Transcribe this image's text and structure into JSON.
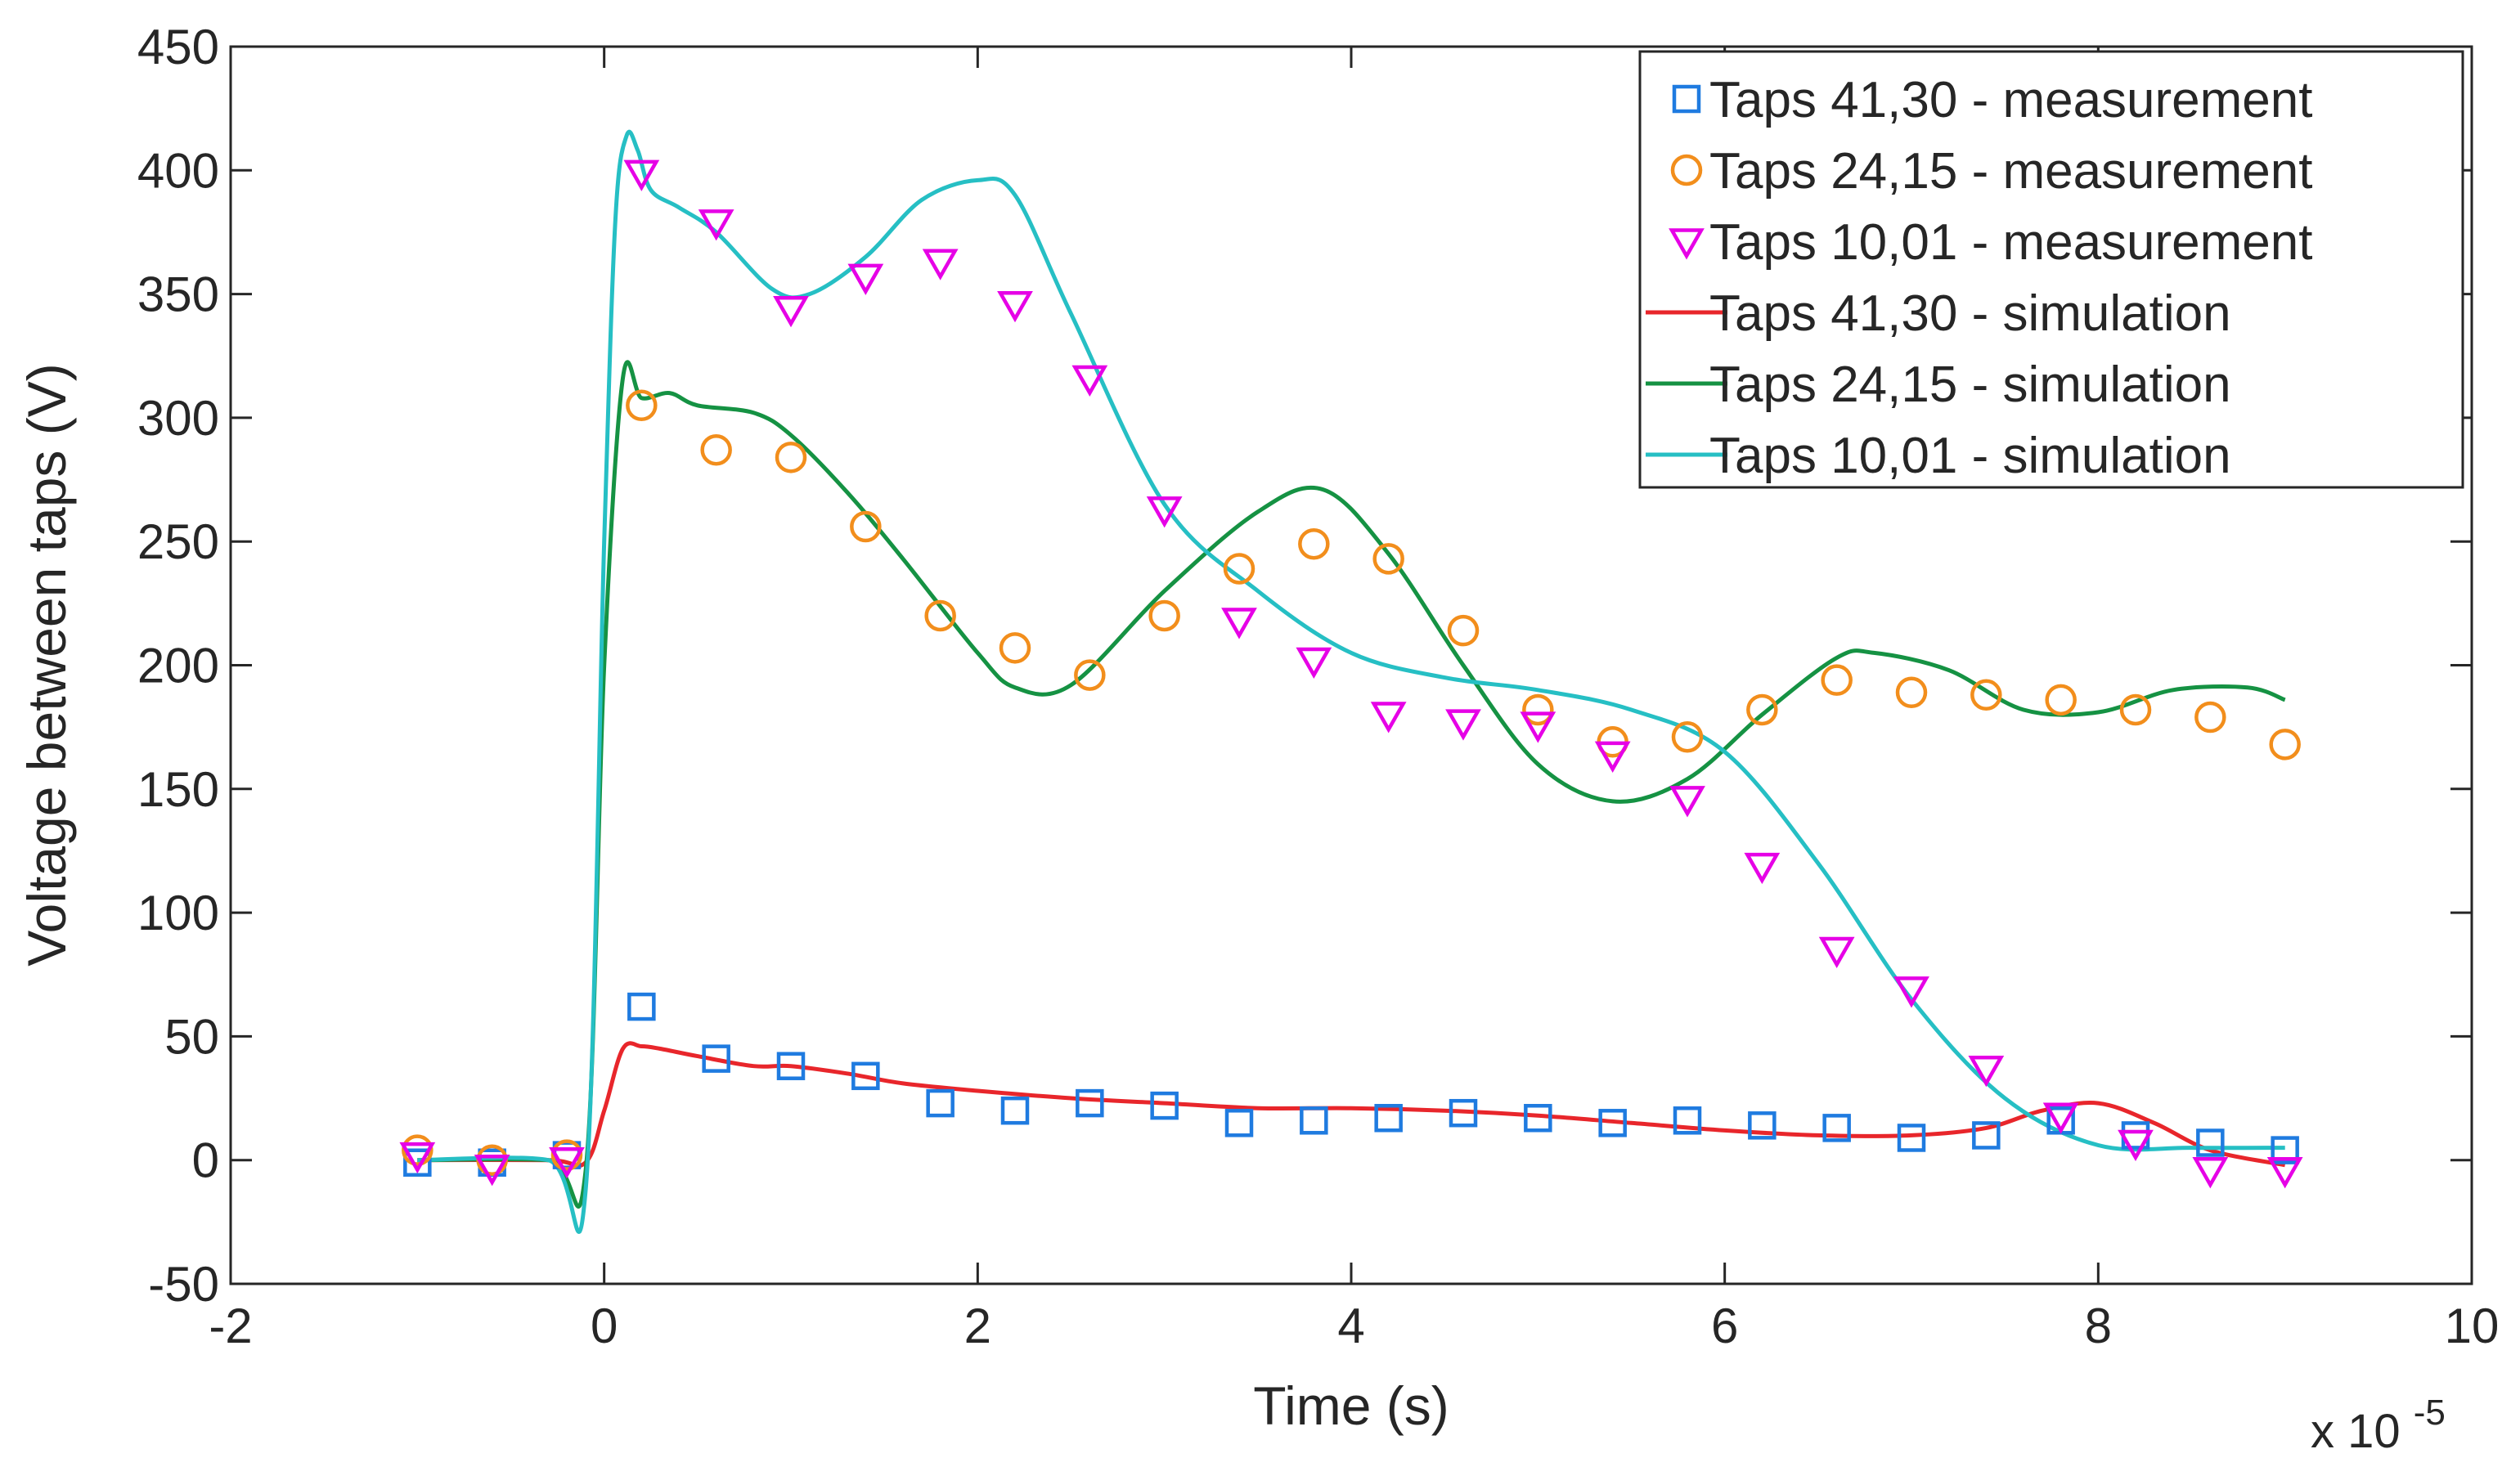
{
  "chart_data": {
    "type": "line",
    "xlabel": "Time (s)",
    "ylabel": "Voltage between taps (V)",
    "x_exponent_label": "x 10",
    "x_exponent_power": "-5",
    "xlim": [
      -2,
      10
    ],
    "ylim": [
      -50,
      450
    ],
    "x_ticks": [
      -2,
      0,
      2,
      4,
      6,
      8,
      10
    ],
    "y_ticks": [
      -50,
      0,
      50,
      100,
      150,
      200,
      250,
      300,
      350,
      400,
      450
    ],
    "legend_position": "top-right",
    "measurements": [
      {
        "name": "Taps 41,30 - measurement",
        "marker": "square",
        "color": "#1f7be0",
        "x": [
          -1,
          -0.6,
          -0.2,
          0.2,
          0.6,
          1.0,
          1.4,
          1.8,
          2.2,
          2.6,
          3.0,
          3.4,
          3.8,
          4.2,
          4.6,
          5.0,
          5.4,
          5.8,
          6.2,
          6.6,
          7.0,
          7.4,
          7.8,
          8.2,
          8.6,
          9.0
        ],
        "y": [
          -1,
          -1,
          2,
          62,
          41,
          38,
          34,
          23,
          20,
          23,
          22,
          15,
          16,
          17,
          19,
          17,
          15,
          16,
          14,
          13,
          9,
          10,
          16,
          10,
          7,
          4
        ]
      },
      {
        "name": "Taps 24,15 - measurement",
        "marker": "circle",
        "color": "#f28e1c",
        "x": [
          -1,
          -0.6,
          -0.2,
          0.2,
          0.6,
          1.0,
          1.4,
          1.8,
          2.2,
          2.6,
          3.0,
          3.4,
          3.8,
          4.2,
          4.6,
          5.0,
          5.4,
          5.8,
          6.2,
          6.6,
          7.0,
          7.4,
          7.8,
          8.2,
          8.6,
          9.0
        ],
        "y": [
          4,
          0,
          2,
          305,
          287,
          284,
          256,
          220,
          207,
          196,
          220,
          239,
          249,
          243,
          214,
          182,
          169,
          171,
          182,
          194,
          189,
          188,
          186,
          182,
          179,
          168
        ]
      },
      {
        "name": "Taps 10,01 - measurement",
        "marker": "triangle-down",
        "color": "#e600e6",
        "x": [
          -1,
          -0.6,
          -0.2,
          0.2,
          0.6,
          1.0,
          1.4,
          1.8,
          2.2,
          2.6,
          3.0,
          3.4,
          3.8,
          4.2,
          4.6,
          5.0,
          5.4,
          5.8,
          6.2,
          6.6,
          7.0,
          7.4,
          7.8,
          8.2,
          8.6,
          9.0
        ],
        "y": [
          2,
          -3,
          0,
          399,
          379,
          344,
          357,
          363,
          346,
          316,
          263,
          218,
          202,
          180,
          177,
          176,
          164,
          146,
          119,
          85,
          69,
          37,
          18,
          7,
          -4,
          -4
        ]
      }
    ],
    "simulations": [
      {
        "name": "Taps 41,30 - simulation",
        "color": "#e8262b",
        "x": [
          -1,
          -0.3,
          -0.1,
          0.0,
          0.1,
          0.2,
          0.3,
          0.5,
          0.8,
          1.0,
          1.3,
          1.6,
          2.0,
          2.5,
          3.0,
          3.5,
          4.0,
          4.5,
          5.0,
          5.5,
          6.0,
          6.5,
          7.0,
          7.4,
          7.7,
          8.0,
          8.3,
          8.6,
          9.0
        ],
        "y": [
          0,
          0,
          -1,
          20,
          45,
          46,
          45,
          42,
          38,
          38,
          35,
          31,
          28,
          25,
          23,
          21,
          21,
          20,
          18,
          15,
          12,
          10,
          10,
          13,
          20,
          23,
          15,
          4,
          -2
        ]
      },
      {
        "name": "Taps 24,15 - simulation",
        "color": "#159243",
        "x": [
          -1,
          -0.3,
          -0.1,
          0.0,
          0.1,
          0.2,
          0.35,
          0.5,
          0.8,
          1.0,
          1.3,
          1.6,
          2.0,
          2.2,
          2.5,
          3.0,
          3.5,
          3.85,
          4.2,
          4.6,
          5.0,
          5.4,
          5.8,
          6.2,
          6.6,
          6.8,
          7.2,
          7.6,
          8.0,
          8.4,
          8.8,
          9.0
        ],
        "y": [
          0,
          0,
          -5,
          200,
          316,
          308,
          310,
          305,
          302,
          293,
          270,
          243,
          205,
          191,
          192,
          230,
          262,
          271,
          245,
          200,
          160,
          145,
          154,
          180,
          203,
          205,
          198,
          182,
          181,
          190,
          191,
          186
        ]
      },
      {
        "name": "Taps 10,01 - simulation",
        "color": "#26bfc4",
        "x": [
          -1,
          -0.3,
          -0.1,
          0.0,
          0.06,
          0.12,
          0.18,
          0.25,
          0.4,
          0.6,
          0.9,
          1.1,
          1.4,
          1.7,
          2.0,
          2.2,
          2.5,
          3.0,
          3.5,
          4.0,
          4.5,
          5.0,
          5.5,
          6.0,
          6.5,
          7.0,
          7.5,
          8.0,
          8.5,
          9.0
        ],
        "y": [
          0,
          0,
          -13,
          250,
          380,
          414,
          408,
          392,
          385,
          375,
          352,
          350,
          365,
          388,
          396,
          390,
          342,
          265,
          230,
          205,
          195,
          190,
          182,
          165,
          120,
          65,
          25,
          6,
          5,
          5
        ]
      }
    ]
  }
}
